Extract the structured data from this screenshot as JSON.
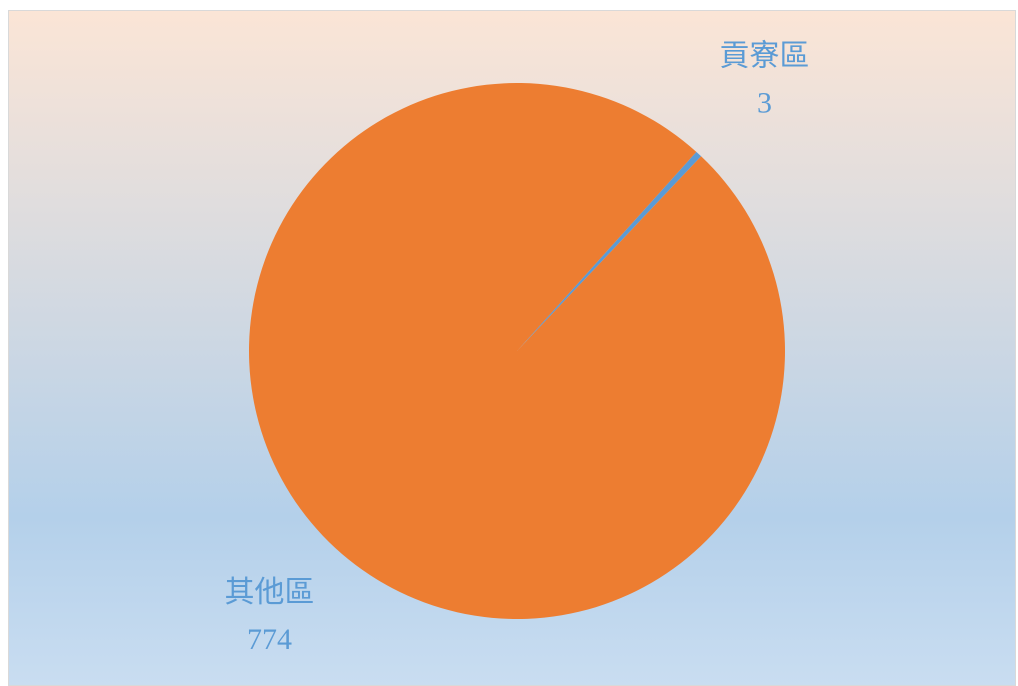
{
  "chart_data": {
    "type": "pie",
    "categories": [
      "貢寮區",
      "其他區"
    ],
    "values": [
      3,
      774
    ],
    "colors": [
      "#5b9bd5",
      "#ed7d31"
    ]
  }
}
